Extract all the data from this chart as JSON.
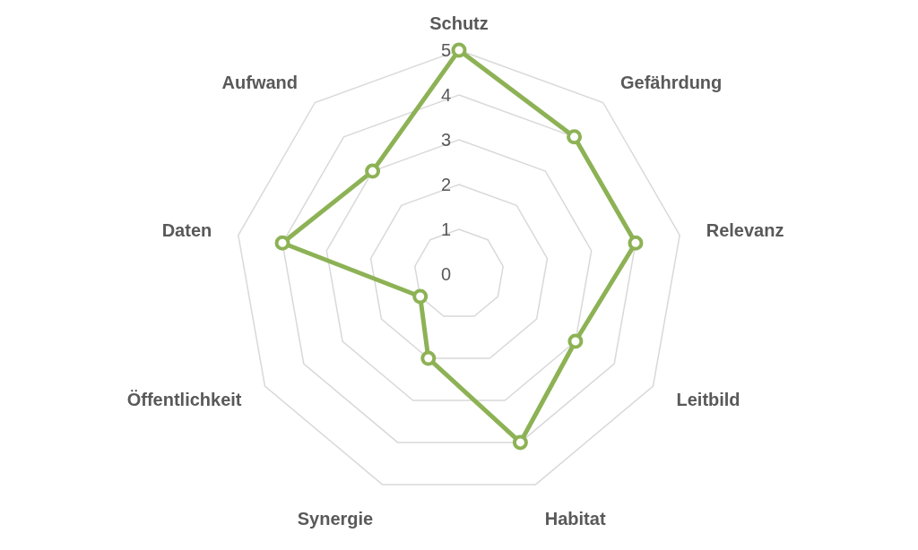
{
  "chart_data": {
    "type": "radar",
    "categories": [
      "Schutz",
      "Gefährdung",
      "Relevanz",
      "Leitbild",
      "Habitat",
      "Synergie",
      "Öffentlichkeit",
      "Daten",
      "Aufwand"
    ],
    "series": [
      {
        "color": "#8db255",
        "values": [
          5,
          4,
          4,
          3,
          4,
          2,
          1,
          4,
          3
        ]
      }
    ],
    "ylim": [
      0,
      5
    ],
    "yticks": [
      0,
      1,
      2,
      3,
      4,
      5
    ],
    "grid": true,
    "marker": "circle",
    "line_style": "solid"
  }
}
